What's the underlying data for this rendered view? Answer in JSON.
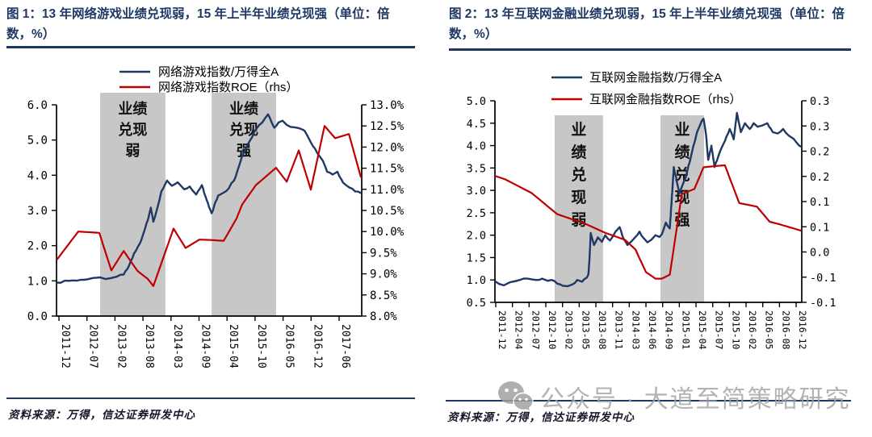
{
  "watermark": {
    "icon": "wechat-icon",
    "text": "公众号 · 大道至简策略研究",
    "color": "#a3a3a3"
  },
  "panels": [
    {
      "title": "图 1：13 年网络游戏业绩兑现弱，15 年上半年业绩兑现强（单位：倍数，%）",
      "source": "资料来源：万得，信达证券研发中心"
    },
    {
      "title": "图 2：13 年互联网金融业绩兑现弱，15 年上半年业绩兑现强（单位：倍数，%）",
      "source": "资料来源：万得，信达证券研发中心"
    }
  ],
  "colors": {
    "navy": "#1F3864",
    "red": "#C00000",
    "band": "#C7C7C7",
    "axis": "#000000"
  },
  "chart_data": [
    {
      "type": "line",
      "title": "13 年网络游戏业绩兑现弱，15 年上半年业绩兑现强",
      "units": "倍数，%",
      "x_tick_labels": [
        "2011-12",
        "2012-07",
        "2013-02",
        "2013-08",
        "2014-03",
        "2014-09",
        "2015-04",
        "2015-10",
        "2016-05",
        "2016-12",
        "2017-06"
      ],
      "left_axis": {
        "min": 0,
        "max": 6,
        "labels": [
          "6.0",
          "5.0",
          "4.0",
          "3.0",
          "2.0",
          "1.0",
          "0.0"
        ]
      },
      "right_axis": {
        "min": 8,
        "max": 13,
        "labels": [
          "13.0%",
          "12.5%",
          "12.0%",
          "11.5%",
          "11.0%",
          "10.5%",
          "10.0%",
          "9.5%",
          "9.0%",
          "8.5%",
          "8.0%"
        ]
      },
      "legend_position": "top-center",
      "grid": false,
      "bands": [
        {
          "t0": 1.47,
          "t1": 3.8,
          "rows": [
            "业绩",
            "兑现",
            "弱"
          ]
        },
        {
          "t0": 5.45,
          "t1": 7.75,
          "rows": [
            "业绩",
            "兑现",
            "强"
          ]
        }
      ],
      "series": [
        {
          "name": "网络游戏指数/万得全A",
          "axis": "left",
          "color": "#1F3864",
          "width": 2.4,
          "noise": 1.1,
          "points": [
            [
              -0.08,
              0.95
            ],
            [
              0.35,
              1.0
            ],
            [
              0.78,
              1.03
            ],
            [
              1.0,
              1.04
            ],
            [
              1.21,
              1.08
            ],
            [
              1.47,
              1.1
            ],
            [
              1.67,
              1.05
            ],
            [
              1.87,
              1.08
            ],
            [
              2.07,
              1.12
            ],
            [
              2.31,
              1.18
            ],
            [
              2.51,
              1.45
            ],
            [
              2.68,
              1.78
            ],
            [
              2.88,
              2.05
            ],
            [
              3.08,
              2.5
            ],
            [
              3.2,
              2.8
            ],
            [
              3.28,
              3.08
            ],
            [
              3.37,
              2.68
            ],
            [
              3.46,
              2.92
            ],
            [
              3.66,
              3.55
            ],
            [
              3.86,
              3.85
            ],
            [
              4.03,
              3.7
            ],
            [
              4.24,
              3.8
            ],
            [
              4.47,
              3.6
            ],
            [
              4.67,
              3.68
            ],
            [
              4.9,
              3.45
            ],
            [
              5.1,
              3.72
            ],
            [
              5.27,
              3.3
            ],
            [
              5.45,
              2.92
            ],
            [
              5.68,
              3.42
            ],
            [
              5.97,
              3.55
            ],
            [
              6.25,
              3.85
            ],
            [
              6.54,
              4.55
            ],
            [
              6.83,
              5.0
            ],
            [
              7.03,
              5.3
            ],
            [
              7.26,
              5.5
            ],
            [
              7.46,
              5.73
            ],
            [
              7.69,
              5.35
            ],
            [
              7.84,
              5.5
            ],
            [
              7.98,
              5.55
            ],
            [
              8.13,
              5.43
            ],
            [
              8.41,
              5.36
            ],
            [
              8.76,
              5.27
            ],
            [
              8.99,
              4.93
            ],
            [
              9.22,
              4.63
            ],
            [
              9.42,
              4.41
            ],
            [
              9.57,
              4.1
            ],
            [
              9.77,
              4.02
            ],
            [
              9.94,
              4.1
            ],
            [
              10.14,
              3.79
            ],
            [
              10.37,
              3.65
            ],
            [
              10.57,
              3.54
            ],
            [
              10.78,
              3.49
            ]
          ]
        },
        {
          "name": "网络游戏指数ROE（rhs）",
          "axis": "right",
          "color": "#C00000",
          "width": 2.2,
          "noise": 0,
          "points": [
            [
              -0.08,
              9.33
            ],
            [
              0.69,
              10.0
            ],
            [
              1.44,
              9.97
            ],
            [
              1.87,
              9.08
            ],
            [
              2.31,
              9.54
            ],
            [
              2.8,
              9.07
            ],
            [
              3.17,
              8.88
            ],
            [
              3.37,
              8.71
            ],
            [
              4.09,
              10.07
            ],
            [
              4.52,
              9.61
            ],
            [
              5.01,
              9.81
            ],
            [
              5.42,
              9.8
            ],
            [
              5.88,
              9.78
            ],
            [
              6.34,
              10.31
            ],
            [
              6.54,
              10.64
            ],
            [
              7.03,
              11.1
            ],
            [
              7.75,
              11.51
            ],
            [
              8.13,
              11.18
            ],
            [
              8.56,
              11.92
            ],
            [
              8.99,
              10.99
            ],
            [
              9.48,
              12.5
            ],
            [
              9.86,
              12.21
            ],
            [
              10.35,
              12.31
            ],
            [
              10.78,
              11.28
            ]
          ]
        }
      ],
      "layout": {
        "plot": {
          "l": 70,
          "r": 448,
          "t": 130,
          "b": 392
        },
        "tick0": 73,
        "dx": 34.7,
        "band_top_y": 115,
        "yfont": 14,
        "xfont": 13,
        "band_font": 18,
        "band_dy": 26,
        "band_y0": 26,
        "legend": {
          "x": 148,
          "text_x": 196,
          "rows_y": [
            89,
            108
          ],
          "font": 15
        }
      }
    },
    {
      "type": "line",
      "title": "13 年互联网金融业绩兑现弱，15 年上半年业绩兑现强",
      "units": "倍数，%",
      "x_tick_labels": [
        "2011-12",
        "2012-04",
        "2012-07",
        "2012-10",
        "2013-02",
        "2013-05",
        "2013-08",
        "2013-11",
        "2014-03",
        "2014-06",
        "2014-09",
        "2015-01",
        "2015-04",
        "2015-07",
        "2015-10",
        "2016-02",
        "2016-05",
        "2016-08",
        "2016-12"
      ],
      "left_axis": {
        "min": 0.5,
        "max": 5,
        "labels": [
          "5.0",
          "4.5",
          "4.0",
          "3.5",
          "3.0",
          "2.5",
          "2.0",
          "1.5",
          "1.0",
          "0.5"
        ]
      },
      "right_axis": {
        "min": -0.1,
        "max": 0.3,
        "labels": [
          "0.3",
          "0.3",
          "0.2",
          "0.2",
          "0.1",
          "0.1",
          "0.0",
          "-0.1",
          "-0.1"
        ]
      },
      "legend_position": "top-center",
      "grid": false,
      "bands": [
        {
          "t0": 3.53,
          "t1": 6.43,
          "rows": [
            "业",
            "绩",
            "兑",
            "现",
            "弱"
          ]
        },
        {
          "t0": 9.87,
          "t1": 12.48,
          "rows": [
            "业",
            "绩",
            "兑",
            "现",
            "强"
          ]
        }
      ],
      "series": [
        {
          "name": "互联网金融指数/万得全A",
          "axis": "left",
          "color": "#1F3864",
          "width": 2.4,
          "noise": 1.0,
          "points": [
            [
              -0.05,
              0.97
            ],
            [
              0.48,
              0.88
            ],
            [
              0.86,
              0.95
            ],
            [
              1.44,
              1.0
            ],
            [
              1.91,
              1.03
            ],
            [
              2.39,
              1.0
            ],
            [
              2.78,
              1.03
            ],
            [
              3.11,
              0.98
            ],
            [
              3.35,
              1.0
            ],
            [
              3.68,
              0.92
            ],
            [
              4.02,
              0.87
            ],
            [
              4.31,
              0.86
            ],
            [
              4.59,
              0.9
            ],
            [
              4.88,
              1.0
            ],
            [
              5.17,
              0.96
            ],
            [
              5.45,
              1.05
            ],
            [
              5.55,
              1.12
            ],
            [
              5.62,
              1.5
            ],
            [
              5.69,
              2.05
            ],
            [
              5.89,
              1.78
            ],
            [
              6.12,
              1.95
            ],
            [
              6.36,
              1.85
            ],
            [
              6.56,
              2.0
            ],
            [
              6.84,
              1.88
            ],
            [
              7.18,
              2.08
            ],
            [
              7.42,
              2.18
            ],
            [
              7.66,
              1.92
            ],
            [
              7.89,
              1.78
            ],
            [
              8.13,
              1.86
            ],
            [
              8.37,
              1.96
            ],
            [
              8.61,
              2.08
            ],
            [
              8.85,
              1.94
            ],
            [
              9.09,
              1.84
            ],
            [
              9.33,
              1.9
            ],
            [
              9.57,
              2.0
            ],
            [
              9.81,
              1.96
            ],
            [
              9.95,
              2.02
            ],
            [
              10.19,
              2.28
            ],
            [
              10.43,
              2.15
            ],
            [
              10.67,
              3.52
            ],
            [
              11.0,
              2.93
            ],
            [
              11.39,
              3.29
            ],
            [
              11.72,
              3.8
            ],
            [
              12.06,
              4.3
            ],
            [
              12.34,
              4.55
            ],
            [
              12.45,
              4.6
            ],
            [
              12.6,
              4.25
            ],
            [
              12.73,
              3.68
            ],
            [
              12.92,
              4.0
            ],
            [
              13.11,
              3.52
            ],
            [
              13.4,
              3.83
            ],
            [
              13.73,
              4.1
            ],
            [
              14.02,
              4.37
            ],
            [
              14.26,
              4.14
            ],
            [
              14.45,
              4.73
            ],
            [
              14.69,
              4.3
            ],
            [
              14.93,
              4.5
            ],
            [
              15.22,
              4.37
            ],
            [
              15.45,
              4.5
            ],
            [
              15.69,
              4.42
            ],
            [
              15.98,
              4.45
            ],
            [
              16.27,
              4.5
            ],
            [
              16.6,
              4.3
            ],
            [
              16.89,
              4.27
            ],
            [
              17.22,
              4.37
            ],
            [
              17.56,
              4.22
            ],
            [
              17.85,
              4.15
            ],
            [
              18.18,
              4.0
            ],
            [
              18.33,
              3.97
            ]
          ]
        },
        {
          "name": "互联网金融指数ROE（rhs）",
          "axis": "right",
          "color": "#C00000",
          "width": 2.2,
          "noise": 0,
          "points": [
            [
              -0.05,
              0.151
            ],
            [
              0.57,
              0.144
            ],
            [
              2.15,
              0.117
            ],
            [
              3.68,
              0.075
            ],
            [
              5.36,
              0.056
            ],
            [
              6.56,
              0.038
            ],
            [
              7.75,
              0.024
            ],
            [
              8.37,
              0.005
            ],
            [
              9.0,
              -0.04
            ],
            [
              9.57,
              -0.053
            ],
            [
              9.95,
              -0.053
            ],
            [
              10.43,
              -0.045
            ],
            [
              11.15,
              0.115
            ],
            [
              11.9,
              0.125
            ],
            [
              12.45,
              0.168
            ],
            [
              13.0,
              0.17
            ],
            [
              13.73,
              0.172
            ],
            [
              14.59,
              0.097
            ],
            [
              15.65,
              0.09
            ],
            [
              16.41,
              0.06
            ],
            [
              16.99,
              0.055
            ],
            [
              18.33,
              0.042
            ]
          ]
        }
      ],
      "layout": {
        "plot": {
          "l": 73,
          "r": 453,
          "t": 125,
          "b": 375
        },
        "tick0": 74,
        "dx": 20.67,
        "band_top_y": 143,
        "yfont": 13.5,
        "xfont": 11.5,
        "band_font": 19,
        "band_dy": 28,
        "band_y0": 24,
        "legend": {
          "x": 143,
          "text_x": 190,
          "rows_y": [
            96,
            123
          ],
          "font": 15
        }
      }
    }
  ]
}
